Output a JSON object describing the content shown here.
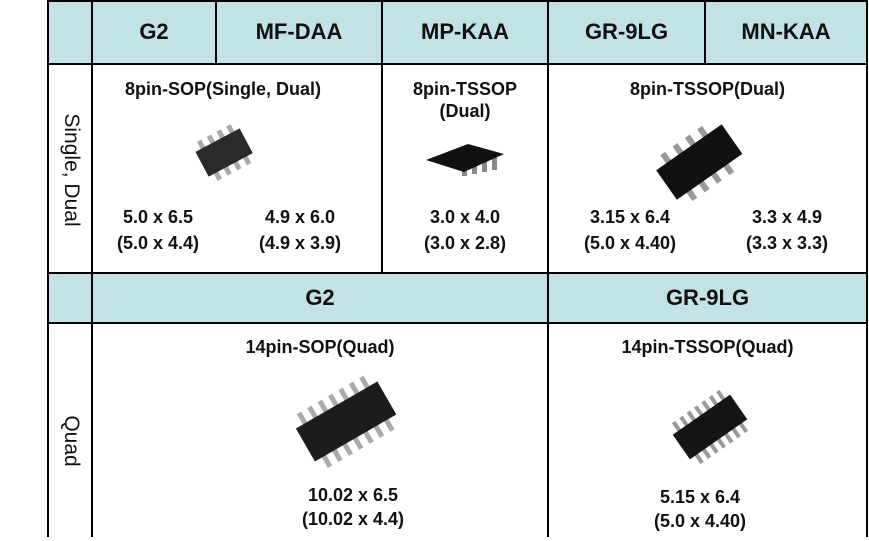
{
  "top_header": [
    "G2",
    "MF-DAA",
    "MP-KAA",
    "GR-9LG",
    "MN-KAA"
  ],
  "dual_row": {
    "label": "Single, Dual",
    "packages": [
      [
        "8pin-SOP(Single, Dual)"
      ],
      [
        "8pin-TSSOP",
        "(Dual)"
      ],
      [
        "8pin-TSSOP(Dual)"
      ]
    ],
    "sizes": [
      [
        "5.0 x 6.5",
        "(5.0 x 4.4)"
      ],
      [
        "4.9 x 6.0",
        "(4.9 x 3.9)"
      ],
      [
        "3.0 x 4.0",
        "(3.0 x 2.8)"
      ],
      [
        "3.15 x 6.4",
        "(5.0 x 4.40)"
      ],
      [
        "3.3 x 4.9",
        "(3.3 x 3.3)"
      ]
    ]
  },
  "mid_header": [
    "G2",
    "GR-9LG"
  ],
  "quad_row": {
    "label": "Quad",
    "packages": [
      [
        "14pin-SOP(Quad)"
      ],
      [
        "14pin-TSSOP(Quad)"
      ]
    ],
    "sizes": [
      [
        "10.02 x 6.5",
        "(10.02 x 4.4)"
      ],
      [
        "5.15 x 6.4",
        "(5.0 x 4.40)"
      ]
    ]
  }
}
